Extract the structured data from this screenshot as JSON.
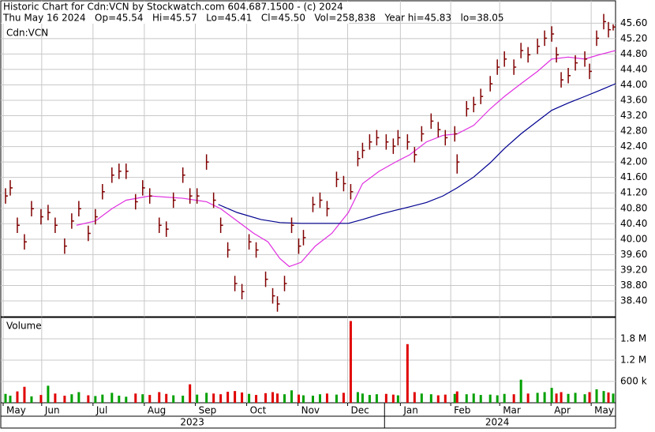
{
  "header": {
    "line1": "Historic Chart for Cdn:VCN by Stockwatch.com 604.687.1500 - (c) 2024",
    "line2": "Thu May 16 2024   Op=45.54   Hi=45.57   Lo=45.41   Cl=45.50   Vol=258,838   Year hi=45.83   lo=38.05"
  },
  "chart_data": [
    {
      "type": "ohlc",
      "legend": "Cdn:VCN",
      "color": "#800000",
      "grid": true,
      "x": [
        2,
        4,
        7,
        10,
        13,
        17,
        20,
        23,
        27,
        30,
        33,
        37,
        40,
        43,
        47,
        50,
        53,
        57,
        60,
        63,
        67,
        70,
        73,
        77,
        80,
        83,
        87,
        90,
        93,
        96,
        99,
        102,
        105,
        108,
        112,
        115,
        117,
        120,
        123,
        126,
        128,
        132,
        135,
        138,
        142,
        145,
        148,
        151,
        153,
        156,
        159,
        163,
        166,
        168,
        172,
        175,
        178,
        182,
        185,
        188,
        192,
        193,
        197,
        200,
        203,
        207,
        210,
        213,
        217,
        220,
        223,
        227,
        230,
        233,
        235,
        237,
        240,
        243,
        247,
        249,
        252,
        255,
        257,
        259
      ],
      "high": [
        41.32,
        41.53,
        40.56,
        40.13,
        40.99,
        40.78,
        40.89,
        40.56,
        40.02,
        40.67,
        40.99,
        40.35,
        40.78,
        41.43,
        41.86,
        41.96,
        41.96,
        41.17,
        41.53,
        41.32,
        40.56,
        40.46,
        41.21,
        41.86,
        41.32,
        41.32,
        42.2,
        41.21,
        40.56,
        39.92,
        39.05,
        38.84,
        40.13,
        39.92,
        39.16,
        38.73,
        38.52,
        39.05,
        40.56,
        40.02,
        40.24,
        41.1,
        41.21,
        40.99,
        41.75,
        41.64,
        41.43,
        42.29,
        42.5,
        42.72,
        42.83,
        42.72,
        42.61,
        42.83,
        42.72,
        42.39,
        42.93,
        43.26,
        43.04,
        42.83,
        42.93,
        42.2,
        43.58,
        43.69,
        43.9,
        44.23,
        44.66,
        44.87,
        44.66,
        45.09,
        44.98,
        45.2,
        45.41,
        45.52,
        44.98,
        44.33,
        44.44,
        44.77,
        44.87,
        44.55,
        45.41,
        45.84,
        45.63,
        45.57
      ],
      "low": [
        40.92,
        41.13,
        40.16,
        39.73,
        40.59,
        40.38,
        40.49,
        40.16,
        39.62,
        40.27,
        40.59,
        39.95,
        40.38,
        41.03,
        41.46,
        41.56,
        41.56,
        40.77,
        41.13,
        40.92,
        40.16,
        40.06,
        40.81,
        41.46,
        40.92,
        40.92,
        41.8,
        40.81,
        40.16,
        39.52,
        38.65,
        38.44,
        39.73,
        39.52,
        38.76,
        38.33,
        38.12,
        38.65,
        40.16,
        39.62,
        39.84,
        40.7,
        40.81,
        40.59,
        41.35,
        41.24,
        41.03,
        41.89,
        42.1,
        42.32,
        42.43,
        42.32,
        42.21,
        42.43,
        42.32,
        41.99,
        42.53,
        42.86,
        42.64,
        42.43,
        42.53,
        41.7,
        43.18,
        43.29,
        43.5,
        43.83,
        44.26,
        44.47,
        44.26,
        44.69,
        44.58,
        44.8,
        45.01,
        45.12,
        44.58,
        43.93,
        44.04,
        44.37,
        44.47,
        44.15,
        45.01,
        45.44,
        45.23,
        45.41
      ],
      "close": [
        41.12,
        41.33,
        40.36,
        39.93,
        40.79,
        40.58,
        40.69,
        40.36,
        39.82,
        40.47,
        40.79,
        40.15,
        40.58,
        41.23,
        41.66,
        41.76,
        41.76,
        40.97,
        41.33,
        41.12,
        40.36,
        40.26,
        41.01,
        41.66,
        41.12,
        41.12,
        42.0,
        41.01,
        40.36,
        39.72,
        38.85,
        38.64,
        39.93,
        39.72,
        38.96,
        38.53,
        38.32,
        38.85,
        40.36,
        39.82,
        40.04,
        40.9,
        41.01,
        40.79,
        41.55,
        41.44,
        41.23,
        42.09,
        42.3,
        42.52,
        42.63,
        42.52,
        42.41,
        42.63,
        42.52,
        42.19,
        42.73,
        43.06,
        42.84,
        42.63,
        42.73,
        42.0,
        43.38,
        43.49,
        43.7,
        44.03,
        44.46,
        44.67,
        44.46,
        44.89,
        44.78,
        45.0,
        45.21,
        45.32,
        44.78,
        44.13,
        44.24,
        44.57,
        44.67,
        44.35,
        45.21,
        45.64,
        45.43,
        45.5
      ],
      "lines": [
        {
          "color": "#e030e0",
          "x": [
            32,
            40,
            47,
            53,
            63,
            77,
            87,
            93,
            100,
            107,
            113,
            118,
            122,
            127,
            133,
            140,
            147,
            153,
            160,
            167,
            173,
            180,
            187,
            193,
            200,
            207,
            213,
            220,
            227,
            233,
            240,
            247,
            253,
            260
          ],
          "values": [
            40.36,
            40.47,
            40.79,
            41.01,
            41.12,
            41.06,
            40.97,
            40.79,
            40.47,
            40.15,
            39.93,
            39.5,
            39.29,
            39.4,
            39.82,
            40.15,
            40.69,
            41.44,
            41.76,
            42.0,
            42.19,
            42.52,
            42.69,
            42.73,
            42.95,
            43.38,
            43.7,
            44.03,
            44.35,
            44.67,
            44.72,
            44.67,
            44.78,
            44.89
          ]
        },
        {
          "color": "#000090",
          "x": [
            92,
            100,
            110,
            118,
            127,
            133,
            140,
            147,
            153,
            160,
            167,
            173,
            180,
            187,
            193,
            200,
            207,
            213,
            220,
            227,
            233,
            240,
            247,
            253,
            260
          ],
          "values": [
            40.9,
            40.69,
            40.51,
            40.43,
            40.41,
            40.41,
            40.41,
            40.41,
            40.51,
            40.64,
            40.75,
            40.84,
            40.95,
            41.12,
            41.33,
            41.61,
            41.98,
            42.35,
            42.73,
            43.06,
            43.34,
            43.53,
            43.7,
            43.85,
            44.03
          ]
        }
      ],
      "xlim": [
        0,
        260
      ],
      "ylim": [
        37.99,
        46.18
      ],
      "yticks": [
        {
          "value": 38.4,
          "label": "38.40"
        },
        {
          "value": 38.8,
          "label": "38.80"
        },
        {
          "value": 39.2,
          "label": "39.20"
        },
        {
          "value": 39.6,
          "label": "39.60"
        },
        {
          "value": 40,
          "label": "40.00"
        },
        {
          "value": 40.4,
          "label": "40.40"
        },
        {
          "value": 40.8,
          "label": "40.80"
        },
        {
          "value": 41.2,
          "label": "41.20"
        },
        {
          "value": 41.6,
          "label": "41.60"
        },
        {
          "value": 42,
          "label": "42.00"
        },
        {
          "value": 42.4,
          "label": "42.40"
        },
        {
          "value": 42.8,
          "label": "42.80"
        },
        {
          "value": 43.2,
          "label": "43.20"
        },
        {
          "value": 43.6,
          "label": "43.60"
        },
        {
          "value": 44,
          "label": "44.00"
        },
        {
          "value": 44.4,
          "label": "44.40"
        },
        {
          "value": 44.8,
          "label": "44.80"
        },
        {
          "value": 45.2,
          "label": "45.20"
        },
        {
          "value": 45.6,
          "label": "45.60"
        }
      ],
      "xticks": [
        {
          "value": 1,
          "label": "May"
        },
        {
          "value": 17.3,
          "label": "Jun"
        },
        {
          "value": 39,
          "label": "Jul"
        },
        {
          "value": 60.7,
          "label": "Aug"
        },
        {
          "value": 82.3,
          "label": "Sep"
        },
        {
          "value": 104,
          "label": "Oct"
        },
        {
          "value": 125.7,
          "label": "Nov"
        },
        {
          "value": 146.7,
          "label": "Dec"
        },
        {
          "value": 169,
          "label": "Jan"
        },
        {
          "value": 190.3,
          "label": "Feb"
        },
        {
          "value": 211,
          "label": "Mar"
        },
        {
          "value": 232.7,
          "label": "Apr"
        },
        {
          "value": 249.7,
          "label": "May"
        }
      ],
      "years": [
        {
          "value": 81,
          "label": "2023"
        },
        {
          "value": 210,
          "label": "2024"
        }
      ],
      "year_divider": 162.3
    },
    {
      "type": "volume",
      "legend": "Volume",
      "up_color": "#00a000",
      "down_color": "#e00000",
      "grid": true,
      "values": [
        250000,
        200000,
        320000,
        450000,
        180000,
        220000,
        480000,
        260000,
        200000,
        240000,
        300000,
        210000,
        190000,
        230000,
        280000,
        200000,
        170000,
        260000,
        240000,
        220000,
        300000,
        250000,
        210000,
        200000,
        520000,
        230000,
        280000,
        260000,
        240000,
        310000,
        330000,
        290000,
        250000,
        220000,
        270000,
        300000,
        260000,
        240000,
        350000,
        230000,
        210000,
        200000,
        240000,
        260000,
        230000,
        280000,
        2300000,
        300000,
        260000,
        220000,
        240000,
        250000,
        230000,
        210000,
        1650000,
        300000,
        260000,
        240000,
        210000,
        230000,
        250000,
        320000,
        240000,
        260000,
        220000,
        230000,
        210000,
        250000,
        240000,
        650000,
        260000,
        280000,
        300000,
        420000,
        260000,
        300000,
        250000,
        280000,
        240000,
        300000,
        380000,
        330000,
        290000,
        258838
      ],
      "ylim": [
        0,
        2400000
      ],
      "yticks": [
        {
          "value": 600000,
          "label": "600 k"
        },
        {
          "value": 1200000,
          "label": "1.2 M"
        },
        {
          "value": 1800000,
          "label": "1.8 M"
        }
      ]
    }
  ]
}
